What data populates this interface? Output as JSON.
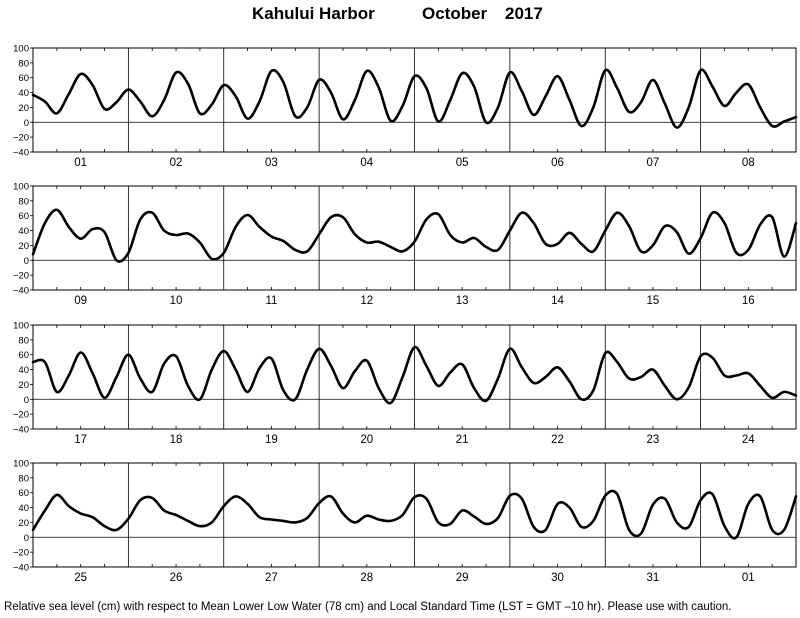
{
  "title": {
    "station": "Kahului Harbor",
    "month": "October",
    "year": "2017"
  },
  "footnote": "Relative sea level (cm) with respect to Mean Lower Low Water (78 cm) and Local Standard Time (LST = GMT –10 hr). Please use with caution.",
  "chart_data": {
    "type": "line",
    "title": "Kahului Harbor October 2017",
    "ylabel": "",
    "ylim": [
      -40,
      100
    ],
    "yticks": [
      -40,
      -20,
      0,
      20,
      40,
      60,
      80,
      100
    ],
    "grid": false,
    "panels": [
      {
        "days": [
          "01",
          "02",
          "03",
          "04",
          "05",
          "06",
          "07",
          "08"
        ],
        "series": [
          {
            "x_hours": [
              0,
              3,
              6,
              9,
              12,
              15,
              18,
              21,
              24,
              27,
              30,
              33,
              36,
              39,
              42,
              45,
              48,
              51,
              54,
              57,
              60,
              63,
              66,
              69,
              72,
              75,
              78,
              81,
              84,
              87,
              90,
              93,
              96,
              99,
              102,
              105,
              108,
              111,
              114,
              117,
              120,
              123,
              126,
              129,
              132,
              135,
              138,
              141,
              144,
              147,
              150,
              153,
              156,
              159,
              162,
              165,
              168,
              171,
              174,
              177,
              180,
              183,
              186,
              189,
              192
            ],
            "values": [
              37,
              28,
              12,
              38,
              65,
              50,
              18,
              27,
              44,
              28,
              8,
              30,
              67,
              52,
              12,
              24,
              50,
              35,
              5,
              28,
              69,
              54,
              8,
              20,
              57,
              40,
              4,
              30,
              69,
              47,
              2,
              22,
              62,
              46,
              1,
              30,
              66,
              48,
              0,
              20,
              67,
              42,
              10,
              35,
              62,
              30,
              -5,
              20,
              70,
              46,
              14,
              27,
              57,
              25,
              -7,
              20,
              70,
              48,
              22,
              40,
              51,
              20,
              -5,
              1,
              7
            ]
          }
        ]
      },
      {
        "days": [
          "09",
          "10",
          "11",
          "12",
          "13",
          "14",
          "15",
          "16"
        ],
        "series": [
          {
            "x_hours": [
              0,
              3,
              6,
              9,
              12,
              15,
              18,
              21,
              24,
              27,
              30,
              33,
              36,
              39,
              42,
              45,
              48,
              51,
              54,
              57,
              60,
              63,
              66,
              69,
              72,
              75,
              78,
              81,
              84,
              87,
              90,
              93,
              96,
              99,
              102,
              105,
              108,
              111,
              114,
              117,
              120,
              123,
              126,
              129,
              132,
              135,
              138,
              141,
              144,
              147,
              150,
              153,
              156,
              159,
              162,
              165,
              168,
              171,
              174,
              177,
              180,
              183,
              186,
              189,
              192
            ],
            "values": [
              8,
              50,
              68,
              45,
              29,
              42,
              38,
              0,
              10,
              55,
              64,
              40,
              34,
              36,
              24,
              2,
              10,
              45,
              61,
              45,
              32,
              26,
              14,
              12,
              35,
              58,
              58,
              35,
              24,
              25,
              18,
              12,
              25,
              55,
              62,
              34,
              24,
              30,
              18,
              14,
              40,
              64,
              50,
              22,
              22,
              37,
              22,
              12,
              40,
              64,
              46,
              12,
              20,
              46,
              38,
              9,
              30,
              64,
              50,
              10,
              14,
              48,
              58,
              5,
              50
            ]
          }
        ]
      },
      {
        "days": [
          "17",
          "18",
          "19",
          "20",
          "21",
          "22",
          "23",
          "24"
        ],
        "series": [
          {
            "x_hours": [
              0,
              3,
              6,
              9,
              12,
              15,
              18,
              21,
              24,
              27,
              30,
              33,
              36,
              39,
              42,
              45,
              48,
              51,
              54,
              57,
              60,
              63,
              66,
              69,
              72,
              75,
              78,
              81,
              84,
              87,
              90,
              93,
              96,
              99,
              102,
              105,
              108,
              111,
              114,
              117,
              120,
              123,
              126,
              129,
              132,
              135,
              138,
              141,
              144,
              147,
              150,
              153,
              156,
              159,
              162,
              165,
              168,
              171,
              174,
              177,
              180,
              183,
              186,
              189,
              192
            ],
            "values": [
              50,
              50,
              10,
              32,
              63,
              35,
              2,
              30,
              60,
              28,
              10,
              48,
              58,
              18,
              0,
              40,
              65,
              40,
              10,
              42,
              55,
              12,
              0,
              40,
              68,
              45,
              15,
              38,
              52,
              15,
              -5,
              30,
              70,
              45,
              18,
              36,
              47,
              15,
              -2,
              28,
              68,
              43,
              22,
              30,
              43,
              24,
              0,
              12,
              62,
              50,
              28,
              30,
              40,
              18,
              0,
              16,
              58,
              56,
              32,
              32,
              35,
              18,
              2,
              10,
              5
            ]
          }
        ]
      },
      {
        "days": [
          "25",
          "26",
          "27",
          "28",
          "29",
          "30",
          "31",
          "01"
        ],
        "series": [
          {
            "x_hours": [
              0,
              3,
              6,
              9,
              12,
              15,
              18,
              21,
              24,
              27,
              30,
              33,
              36,
              39,
              42,
              45,
              48,
              51,
              54,
              57,
              60,
              63,
              66,
              69,
              72,
              75,
              78,
              81,
              84,
              87,
              90,
              93,
              96,
              99,
              102,
              105,
              108,
              111,
              114,
              117,
              120,
              123,
              126,
              129,
              132,
              135,
              138,
              141,
              144,
              147,
              150,
              153,
              156,
              159,
              162,
              165,
              168,
              171,
              174,
              177,
              180,
              183,
              186,
              189,
              192
            ],
            "values": [
              10,
              36,
              57,
              42,
              32,
              27,
              15,
              10,
              25,
              50,
              53,
              36,
              30,
              22,
              15,
              20,
              42,
              55,
              45,
              27,
              24,
              22,
              20,
              26,
              46,
              55,
              32,
              20,
              29,
              24,
              22,
              30,
              54,
              52,
              20,
              18,
              36,
              28,
              18,
              26,
              56,
              52,
              14,
              10,
              45,
              40,
              14,
              22,
              56,
              58,
              10,
              5,
              44,
              52,
              20,
              14,
              50,
              58,
              15,
              0,
              45,
              55,
              10,
              10,
              55
            ]
          }
        ]
      }
    ]
  }
}
